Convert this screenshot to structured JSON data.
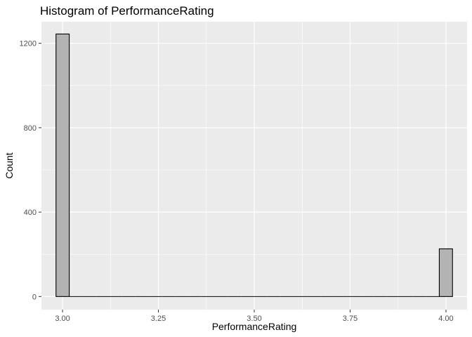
{
  "chart_data": {
    "type": "bar",
    "title": "Histogram of PerformanceRating",
    "xlabel": "PerformanceRating",
    "ylabel": "Count",
    "xlim": [
      2.945,
      4.055
    ],
    "ylim": [
      -62,
      1302
    ],
    "x_ticks": [
      3.0,
      3.25,
      3.5,
      3.75,
      4.0
    ],
    "x_tick_labels": [
      "3.00",
      "3.25",
      "3.50",
      "3.75",
      "4.00"
    ],
    "y_ticks": [
      0,
      400,
      800,
      1200
    ],
    "y_tick_labels": [
      "0",
      "400",
      "800",
      "1200"
    ],
    "bins": 30,
    "bin_range": [
      2.983,
      4.017
    ],
    "counts": [
      1244,
      0,
      0,
      0,
      0,
      0,
      0,
      0,
      0,
      0,
      0,
      0,
      0,
      0,
      0,
      0,
      0,
      0,
      0,
      0,
      0,
      0,
      0,
      0,
      0,
      0,
      0,
      0,
      0,
      226
    ],
    "grid": true,
    "fill_color": "#b3b3b3",
    "outline_color": "#000000",
    "panel_color": "#ebebeb",
    "grid_color": "#ffffff"
  }
}
